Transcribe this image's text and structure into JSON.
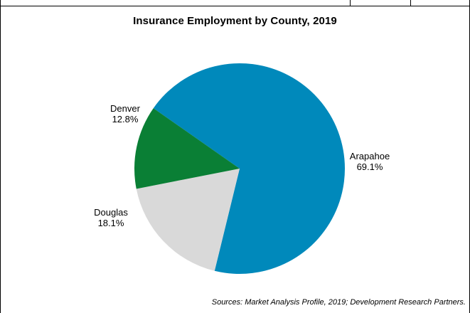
{
  "chart_data": {
    "type": "pie",
    "title": "Insurance Employment by County, 2019",
    "slices": [
      {
        "label": "Arapahoe",
        "value": 69.1,
        "value_label": "69.1%",
        "color": "#0089BB"
      },
      {
        "label": "Douglas",
        "value": 18.1,
        "value_label": "18.1%",
        "color": "#D9D9D9"
      },
      {
        "label": "Denver",
        "value": 12.8,
        "value_label": "12.8%",
        "color": "#0A7F35"
      }
    ],
    "source": "Sources: Market Analysis Profile, 2019;  Development Research Partners."
  }
}
